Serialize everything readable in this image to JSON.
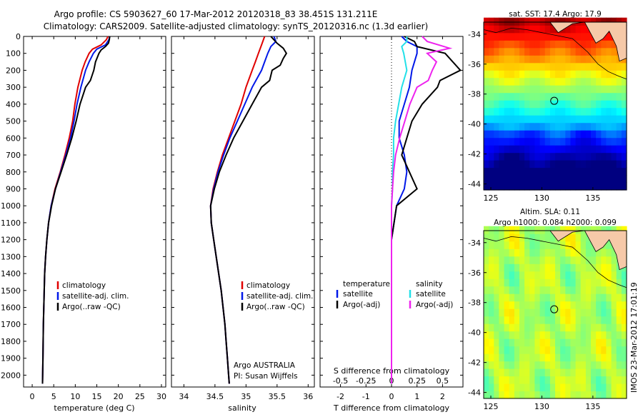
{
  "figure": {
    "title_line1": "Argo profile: CS 5903627_60 17-Mar-2012 20120318_83 38.451S 131.211E",
    "title_line2": "Climatology: CARS2009. Satellite-adjusted climatology: synTS_20120316.nc (1.3d earlier)",
    "side_label": "IMOS 23-Mar-2012 17:01:19"
  },
  "colors": {
    "climatology": "#e00000",
    "satellite": "#0018e8",
    "argo": "#000000",
    "satellite_s": "#22e0e8",
    "argo_s": "#ee22ee"
  },
  "chart_data": [
    {
      "id": "temperature",
      "type": "line",
      "xlabel": "temperature (deg C)",
      "ylabel": "",
      "xlim": [
        -2,
        31
      ],
      "ylim": [
        2070,
        0
      ],
      "xticks": [
        0,
        5,
        10,
        15,
        20,
        25,
        30
      ],
      "yticks": [
        0,
        100,
        200,
        300,
        400,
        500,
        600,
        700,
        800,
        900,
        1000,
        1100,
        1200,
        1300,
        1400,
        1500,
        1600,
        1700,
        1800,
        1900,
        2000
      ],
      "legend": [
        "climatology",
        "satellite-adj. clim.",
        "Argo(..raw -QC)"
      ],
      "legend_position": "bottom-right",
      "series": [
        {
          "name": "climatology",
          "color_key": "climatology",
          "depth": [
            0,
            20,
            50,
            75,
            100,
            150,
            200,
            300,
            400,
            500,
            600,
            700,
            800,
            900,
            1000,
            1100,
            1200,
            1300,
            1400,
            1500,
            1700,
            1900,
            2050
          ],
          "values": [
            17.6,
            17.2,
            16.0,
            14.0,
            13.2,
            12.3,
            11.6,
            10.6,
            9.9,
            9.4,
            8.6,
            7.6,
            6.5,
            5.3,
            4.4,
            3.8,
            3.4,
            3.1,
            2.9,
            2.8,
            2.6,
            2.5,
            2.4
          ]
        },
        {
          "name": "satellite-adj. clim.",
          "color_key": "satellite",
          "depth": [
            0,
            20,
            50,
            75,
            100,
            150,
            200,
            300,
            400,
            500,
            600,
            700,
            800,
            900,
            1000,
            1100,
            1200,
            1300,
            1400,
            1500,
            1700,
            1900,
            2050
          ],
          "values": [
            18.0,
            17.8,
            17.0,
            15.0,
            14.2,
            13.2,
            12.4,
            11.3,
            10.4,
            9.7,
            8.9,
            7.8,
            6.6,
            5.4,
            4.4,
            3.8,
            3.4,
            3.1,
            2.9,
            2.8,
            2.6,
            2.5,
            2.4
          ]
        },
        {
          "name": "Argo(..raw -QC)",
          "color_key": "argo",
          "depth": [
            0,
            20,
            40,
            60,
            80,
            100,
            150,
            200,
            260,
            300,
            400,
            500,
            600,
            700,
            800,
            900,
            1000,
            1100,
            1200,
            1300,
            1400,
            1500,
            1700,
            1900,
            2050
          ],
          "values": [
            18.0,
            17.9,
            17.7,
            17.0,
            16.0,
            15.5,
            14.7,
            14.3,
            13.5,
            12.4,
            11.1,
            10.2,
            9.2,
            8.0,
            6.7,
            5.4,
            4.5,
            3.8,
            3.4,
            3.1,
            2.9,
            2.8,
            2.6,
            2.5,
            2.4
          ]
        }
      ]
    },
    {
      "id": "salinity",
      "type": "line",
      "xlabel": "salinity",
      "ylabel": "",
      "xlim": [
        33.8,
        36.1
      ],
      "ylim": [
        2070,
        0
      ],
      "xticks": [
        34,
        34.5,
        35,
        35.5,
        36
      ],
      "legend": [
        "climatology",
        "satellite-adj. clim.",
        "Argo(..raw -QC)"
      ],
      "legend_position": "bottom-right",
      "annotation_lines": [
        "Argo AUSTRALIA",
        "PI: Susan Wijffels"
      ],
      "series": [
        {
          "name": "climatology",
          "color_key": "climatology",
          "depth": [
            0,
            50,
            100,
            150,
            200,
            300,
            400,
            500,
            600,
            700,
            800,
            900,
            1000,
            1100,
            1200,
            1300,
            1400,
            1500,
            1600,
            1700,
            1800,
            1900,
            2000,
            2050
          ],
          "values": [
            35.3,
            35.25,
            35.2,
            35.15,
            35.1,
            35.0,
            34.92,
            34.82,
            34.72,
            34.62,
            34.54,
            34.47,
            34.43,
            34.44,
            34.48,
            34.52,
            34.56,
            34.6,
            34.63,
            34.66,
            34.68,
            34.7,
            34.72,
            34.73
          ]
        },
        {
          "name": "satellite-adj. clim.",
          "color_key": "satellite",
          "depth": [
            0,
            30,
            60,
            100,
            150,
            200,
            300,
            400,
            500,
            600,
            700,
            800,
            900,
            1000,
            1100,
            1200,
            1300,
            1400,
            1500,
            1600,
            1700,
            1800,
            1900,
            2000,
            2050
          ],
          "values": [
            35.45,
            35.48,
            35.4,
            35.35,
            35.3,
            35.25,
            35.1,
            34.98,
            34.86,
            34.74,
            34.64,
            34.55,
            34.48,
            34.43,
            34.44,
            34.48,
            34.52,
            34.56,
            34.6,
            34.63,
            34.66,
            34.68,
            34.7,
            34.72,
            34.73
          ]
        },
        {
          "name": "Argo(..raw -QC)",
          "color_key": "argo",
          "depth": [
            0,
            40,
            70,
            100,
            130,
            170,
            200,
            260,
            300,
            400,
            500,
            600,
            700,
            800,
            900,
            1000,
            1100,
            1200,
            1300,
            1400,
            1500,
            1600,
            1700,
            1800,
            1900,
            2000,
            2050
          ],
          "values": [
            35.4,
            35.5,
            35.6,
            35.65,
            35.6,
            35.55,
            35.42,
            35.38,
            35.25,
            35.1,
            34.95,
            34.8,
            34.68,
            34.57,
            34.49,
            34.43,
            34.44,
            34.48,
            34.52,
            34.56,
            34.6,
            34.63,
            34.66,
            34.68,
            34.7,
            34.72,
            34.73
          ]
        }
      ]
    },
    {
      "id": "difference",
      "type": "line",
      "xlabel": "T difference from climatology",
      "top_axis_label": "S difference from climatology",
      "xlim": [
        -2.8,
        2.8
      ],
      "ylim": [
        2070,
        0
      ],
      "xticks": [
        -2,
        -1,
        0,
        1,
        2
      ],
      "top_ticks": [
        -0.5,
        -0.25,
        0,
        0.25,
        0.5
      ],
      "top_tick_labels": [
        "-0.5",
        "-0.25",
        "0",
        "0.25",
        "0.5"
      ],
      "zero_line": "dotted",
      "legend_temperature": {
        "heading": "temperature",
        "items": [
          "satellite",
          "Argo(-adj)"
        ]
      },
      "legend_salinity": {
        "heading": "salinity",
        "items": [
          "satellite",
          "Argo(-adj)"
        ]
      },
      "series": [
        {
          "name": "satellite",
          "group": "temperature",
          "color_key": "satellite",
          "depth": [
            0,
            30,
            60,
            100,
            200,
            300,
            400,
            500,
            600,
            700,
            800,
            900,
            1000,
            1200,
            1500,
            2000,
            2050
          ],
          "values": [
            0.4,
            0.6,
            1.0,
            1.0,
            0.8,
            0.7,
            0.5,
            0.3,
            0.3,
            0.5,
            0.6,
            0.5,
            0.2,
            0.0,
            0.0,
            0.0,
            0.0
          ]
        },
        {
          "name": "Argo(-adj)",
          "group": "temperature",
          "color_key": "argo",
          "depth": [
            0,
            30,
            60,
            100,
            150,
            200,
            260,
            300,
            400,
            500,
            600,
            700,
            800,
            900,
            1000,
            1200,
            1500,
            2000,
            2050
          ],
          "values": [
            0.5,
            0.9,
            1.0,
            2.1,
            2.4,
            2.7,
            1.9,
            1.8,
            1.2,
            0.8,
            0.6,
            0.4,
            0.7,
            1.0,
            0.2,
            0.0,
            0.0,
            0.0,
            0.0
          ]
        },
        {
          "name": "satellite",
          "group": "salinity",
          "color_key": "satellite_s",
          "depth": [
            0,
            30,
            60,
            100,
            200,
            300,
            400,
            500,
            600,
            700,
            800,
            900,
            1000,
            1200,
            1500,
            2000,
            2050
          ],
          "values": [
            0.15,
            0.15,
            0.1,
            0.12,
            0.15,
            0.1,
            0.07,
            0.04,
            0.02,
            0.02,
            0.01,
            0.01,
            0.0,
            0.0,
            0.0,
            0.0,
            0.0
          ]
        },
        {
          "name": "Argo(-adj)",
          "group": "salinity",
          "color_key": "argo_s",
          "depth": [
            0,
            30,
            70,
            100,
            150,
            200,
            260,
            300,
            400,
            500,
            600,
            700,
            800,
            900,
            1000,
            1200,
            1500,
            2000,
            2050
          ],
          "values": [
            0.3,
            0.35,
            0.57,
            0.35,
            0.44,
            0.4,
            0.36,
            0.25,
            0.18,
            0.13,
            0.08,
            0.04,
            0.02,
            0.01,
            0.0,
            0.0,
            0.0,
            0.0,
            0.0
          ]
        }
      ]
    },
    {
      "id": "sst_map",
      "type": "heatmap",
      "title": "sat. SST: 17.4  Argo: 17.9",
      "xlim": [
        124.3,
        138.3
      ],
      "ylim": [
        -44.4,
        -33.2
      ],
      "xticks": [
        125,
        130,
        135
      ],
      "yticks": [
        -34,
        -36,
        -38,
        -40,
        -42,
        -44
      ],
      "marker": {
        "lon": 131.211,
        "lat": -38.451
      },
      "colormap": "jet"
    },
    {
      "id": "sla_map",
      "type": "heatmap",
      "title_line1": "Altim. SLA: 0.11",
      "title_line2": "Argo h1000: 0.084  h2000: 0.099",
      "xlim": [
        124.3,
        138.3
      ],
      "ylim": [
        -44.4,
        -33.2
      ],
      "xticks": [
        125,
        130,
        135
      ],
      "yticks": [
        -34,
        -36,
        -38,
        -40,
        -42,
        -44
      ],
      "marker": {
        "lon": 131.211,
        "lat": -38.451
      },
      "colormap": "jet"
    }
  ]
}
